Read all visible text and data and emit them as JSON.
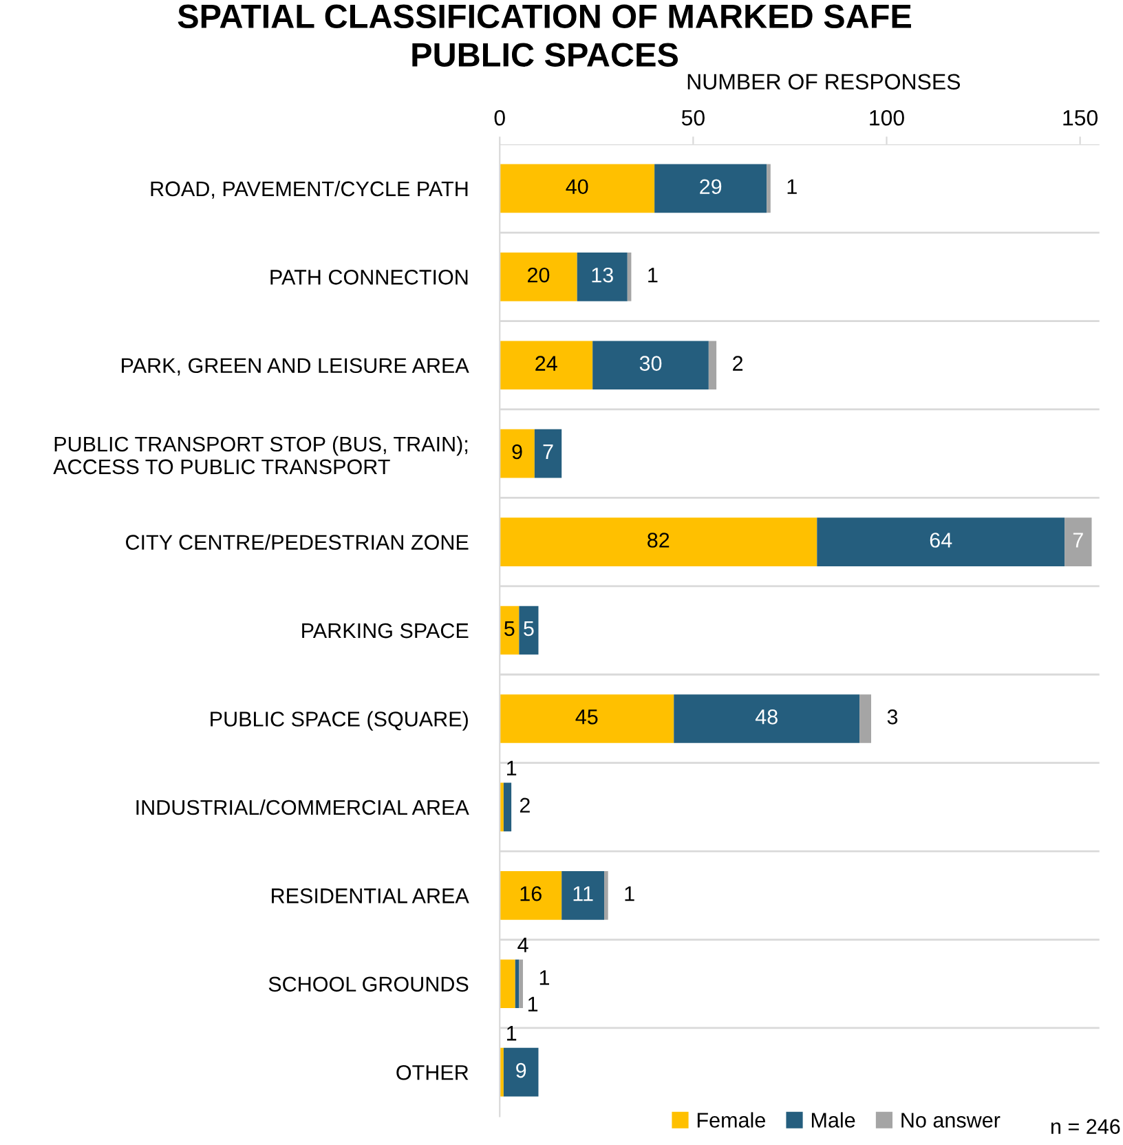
{
  "chart_data": {
    "type": "bar",
    "orientation": "horizontal",
    "stacked": true,
    "title": "SPATIAL CLASSIFICATION OF MARKED SAFE\nPUBLIC SPACES",
    "xlabel": "NUMBER OF RESPONSES",
    "categories": [
      "ROAD, PAVEMENT/CYCLE PATH",
      "PATH CONNECTION",
      "PARK, GREEN AND LEISURE AREA",
      "PUBLIC TRANSPORT STOP (BUS, TRAIN);\nACCESS TO PUBLIC TRANSPORT",
      "CITY CENTRE/PEDESTRIAN ZONE",
      "PARKING SPACE",
      "PUBLIC SPACE (SQUARE)",
      "INDUSTRIAL/COMMERCIAL AREA",
      "RESIDENTIAL AREA",
      "SCHOOL GROUNDS",
      "OTHER"
    ],
    "series": [
      {
        "name": "Female",
        "color": "#ffc000",
        "values": [
          40,
          20,
          24,
          9,
          82,
          5,
          45,
          1,
          16,
          4,
          1
        ]
      },
      {
        "name": "Male",
        "color": "#255e7e",
        "values": [
          29,
          13,
          30,
          7,
          64,
          5,
          48,
          2,
          11,
          1,
          9
        ]
      },
      {
        "name": "No answer",
        "color": "#a5a5a5",
        "values": [
          1,
          1,
          2,
          null,
          7,
          null,
          3,
          null,
          1,
          1,
          null
        ]
      }
    ],
    "xlim": [
      0,
      155
    ],
    "xticks": [
      0,
      50,
      100,
      150
    ],
    "grid": "y",
    "legend": "bottom",
    "data_labels": true,
    "annotations": [
      "n = 246"
    ]
  }
}
